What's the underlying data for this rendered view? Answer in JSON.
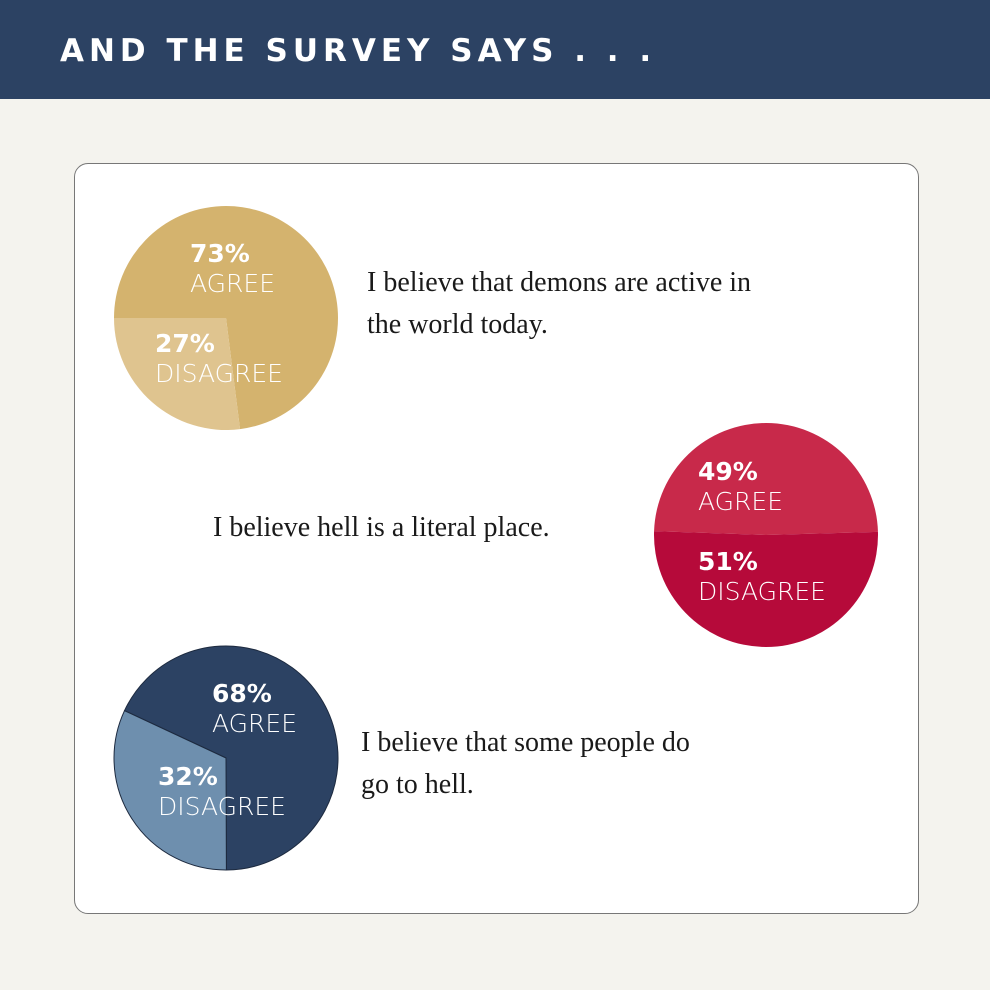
{
  "header": {
    "title": "AND THE SURVEY SAYS . . ."
  },
  "chart_data": [
    {
      "type": "pie",
      "title": "I believe that demons are active in the world today.",
      "categories": [
        "AGREE",
        "DISAGREE"
      ],
      "values": [
        73,
        27
      ],
      "value_labels": [
        "73%",
        "27%"
      ],
      "colors": [
        "#d4b36e",
        "#dfc48f"
      ]
    },
    {
      "type": "pie",
      "title": "I believe hell is a literal place.",
      "categories": [
        "AGREE",
        "DISAGREE"
      ],
      "values": [
        49,
        51
      ],
      "value_labels": [
        "49%",
        "51%"
      ],
      "colors": [
        "#c8294a",
        "#b60a3a"
      ]
    },
    {
      "type": "pie",
      "title": "I believe that some people do go to hell.",
      "categories": [
        "AGREE",
        "DISAGREE"
      ],
      "values": [
        68,
        32
      ],
      "value_labels": [
        "68%",
        "32%"
      ],
      "colors": [
        "#2c4263",
        "#6e8fae"
      ]
    }
  ]
}
